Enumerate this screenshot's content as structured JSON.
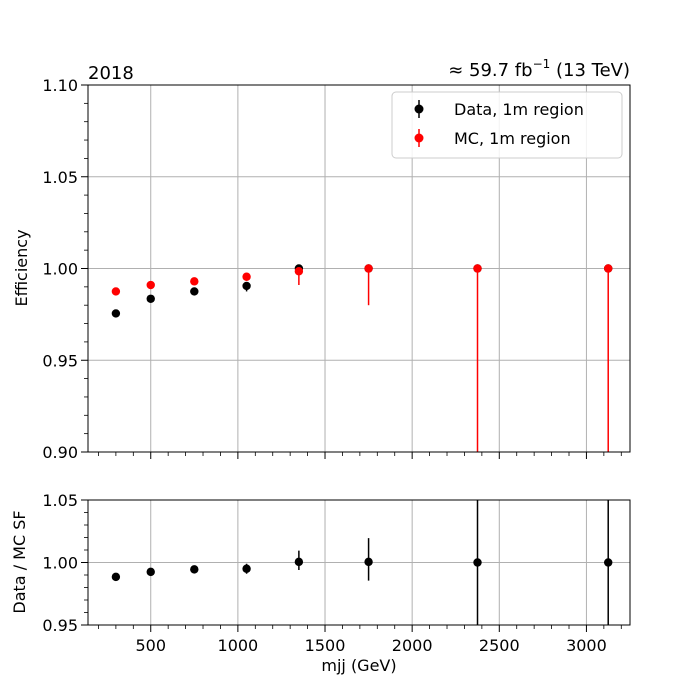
{
  "header": {
    "year_label": "2018",
    "lumi_prefix": "≈ 59.7 fb",
    "lumi_exponent": "−1",
    "lumi_suffix": " (13 TeV)"
  },
  "colors": {
    "data": "#000000",
    "mc": "#ff0000",
    "grid": "#b0b0b0"
  },
  "chart_data": [
    {
      "type": "scatter",
      "panel": "efficiency",
      "ylabel": "Efficiency",
      "xlim": [
        140,
        3250
      ],
      "ylim": [
        0.9,
        1.1
      ],
      "yticks": [
        0.9,
        0.95,
        1.0,
        1.05,
        1.1
      ],
      "ytick_labels": [
        "0.90",
        "0.95",
        "1.00",
        "1.05",
        "1.10"
      ],
      "xticks": [
        500,
        1000,
        1500,
        2000,
        2500,
        3000
      ],
      "grid": true,
      "legend": "top-right",
      "series": [
        {
          "name": "Data, 1m region",
          "color": "#000000",
          "x": [
            300,
            500,
            750,
            1050,
            1350,
            1750,
            2375,
            3125
          ],
          "y": [
            0.9755,
            0.9835,
            0.9875,
            0.9905,
            1.0,
            1.0,
            1.0,
            1.0
          ],
          "yerr_low": [
            0.001,
            0.001,
            0.001,
            0.003,
            0.001,
            0.0,
            0.0,
            0.0
          ],
          "yerr_high": [
            0.001,
            0.001,
            0.001,
            0.002,
            0.0,
            0.0,
            0.0,
            0.0
          ]
        },
        {
          "name": "MC, 1m region",
          "color": "#ff0000",
          "x": [
            300,
            500,
            750,
            1050,
            1350,
            1750,
            2375,
            3125
          ],
          "y": [
            0.9875,
            0.991,
            0.993,
            0.9955,
            0.9985,
            1.0,
            1.0,
            1.0
          ],
          "yerr_low": [
            0.001,
            0.001,
            0.001,
            0.002,
            0.0075,
            0.02,
            0.1,
            0.1
          ],
          "yerr_high": [
            0.001,
            0.001,
            0.001,
            0.001,
            0.0,
            0.0,
            0.0,
            0.0
          ]
        }
      ]
    },
    {
      "type": "scatter",
      "panel": "ratio",
      "xlabel": "mjj (GeV)",
      "ylabel": "Data / MC SF",
      "xlim": [
        140,
        3250
      ],
      "ylim": [
        0.95,
        1.05
      ],
      "yticks": [
        0.95,
        1.0,
        1.05
      ],
      "ytick_labels": [
        "0.95",
        "1.00",
        "1.05"
      ],
      "xticks": [
        500,
        1000,
        1500,
        2000,
        2500,
        3000
      ],
      "xtick_labels": [
        "500",
        "1000",
        "1500",
        "2000",
        "2500",
        "3000"
      ],
      "grid": true,
      "series": [
        {
          "color": "#000000",
          "x": [
            300,
            500,
            750,
            1050,
            1350,
            1750,
            2375,
            3125
          ],
          "y": [
            0.9885,
            0.9925,
            0.9945,
            0.995,
            1.0005,
            1.0005,
            1.0,
            1.0
          ],
          "yerr_low": [
            0.0015,
            0.0015,
            0.0015,
            0.004,
            0.0065,
            0.015,
            0.06,
            0.06
          ],
          "yerr_high": [
            0.0015,
            0.0015,
            0.0015,
            0.004,
            0.009,
            0.019,
            0.06,
            0.06
          ]
        }
      ]
    }
  ]
}
